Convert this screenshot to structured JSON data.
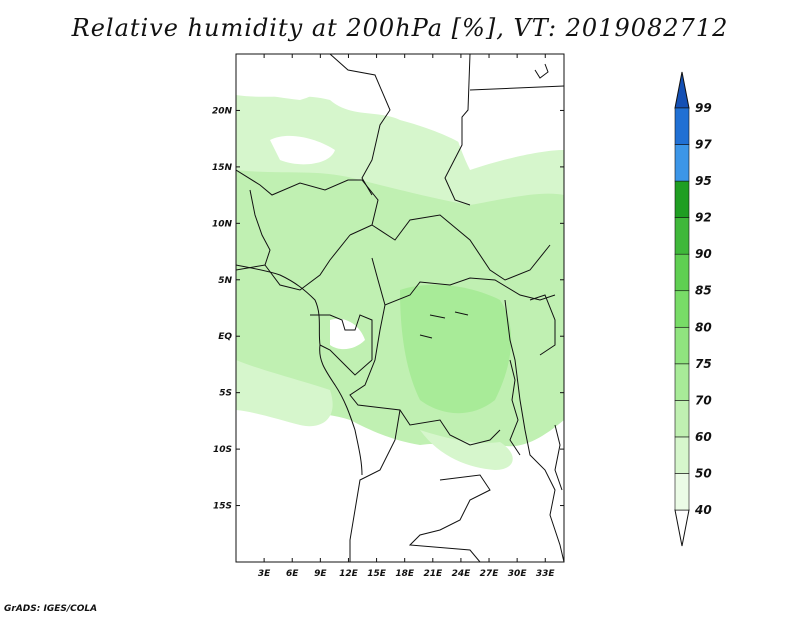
{
  "title": "Relative humidity at 200hPa [%], VT: 2019082712",
  "credit": "GrADS: IGES/COLA",
  "map": {
    "lon_range": [
      0,
      35
    ],
    "lat_range": [
      -20,
      25
    ],
    "lon_ticks": [
      3,
      6,
      9,
      12,
      15,
      18,
      21,
      24,
      27,
      30,
      33
    ],
    "lon_labels": [
      "3E",
      "6E",
      "9E",
      "12E",
      "15E",
      "18E",
      "21E",
      "24E",
      "27E",
      "30E",
      "33E"
    ],
    "lat_ticks": [
      20,
      15,
      10,
      5,
      0,
      -5,
      -10,
      -15
    ],
    "lat_labels": [
      "20N",
      "15N",
      "10N",
      "5N",
      "EQ",
      "5S",
      "10S",
      "15S"
    ]
  },
  "colorbar": {
    "levels": [
      "40",
      "50",
      "60",
      "70",
      "75",
      "80",
      "85",
      "90",
      "92",
      "95",
      "97",
      "99"
    ],
    "colors": [
      "#ebfbe6",
      "#d6f6cc",
      "#c0f0b2",
      "#a8eb98",
      "#90e47f",
      "#78dc67",
      "#5fcf52",
      "#3fb83a",
      "#1f9e22",
      "#3c96e8",
      "#2070d4",
      "#1450b4"
    ],
    "under_color": "#ffffff",
    "over_color": "#1450b4"
  }
}
